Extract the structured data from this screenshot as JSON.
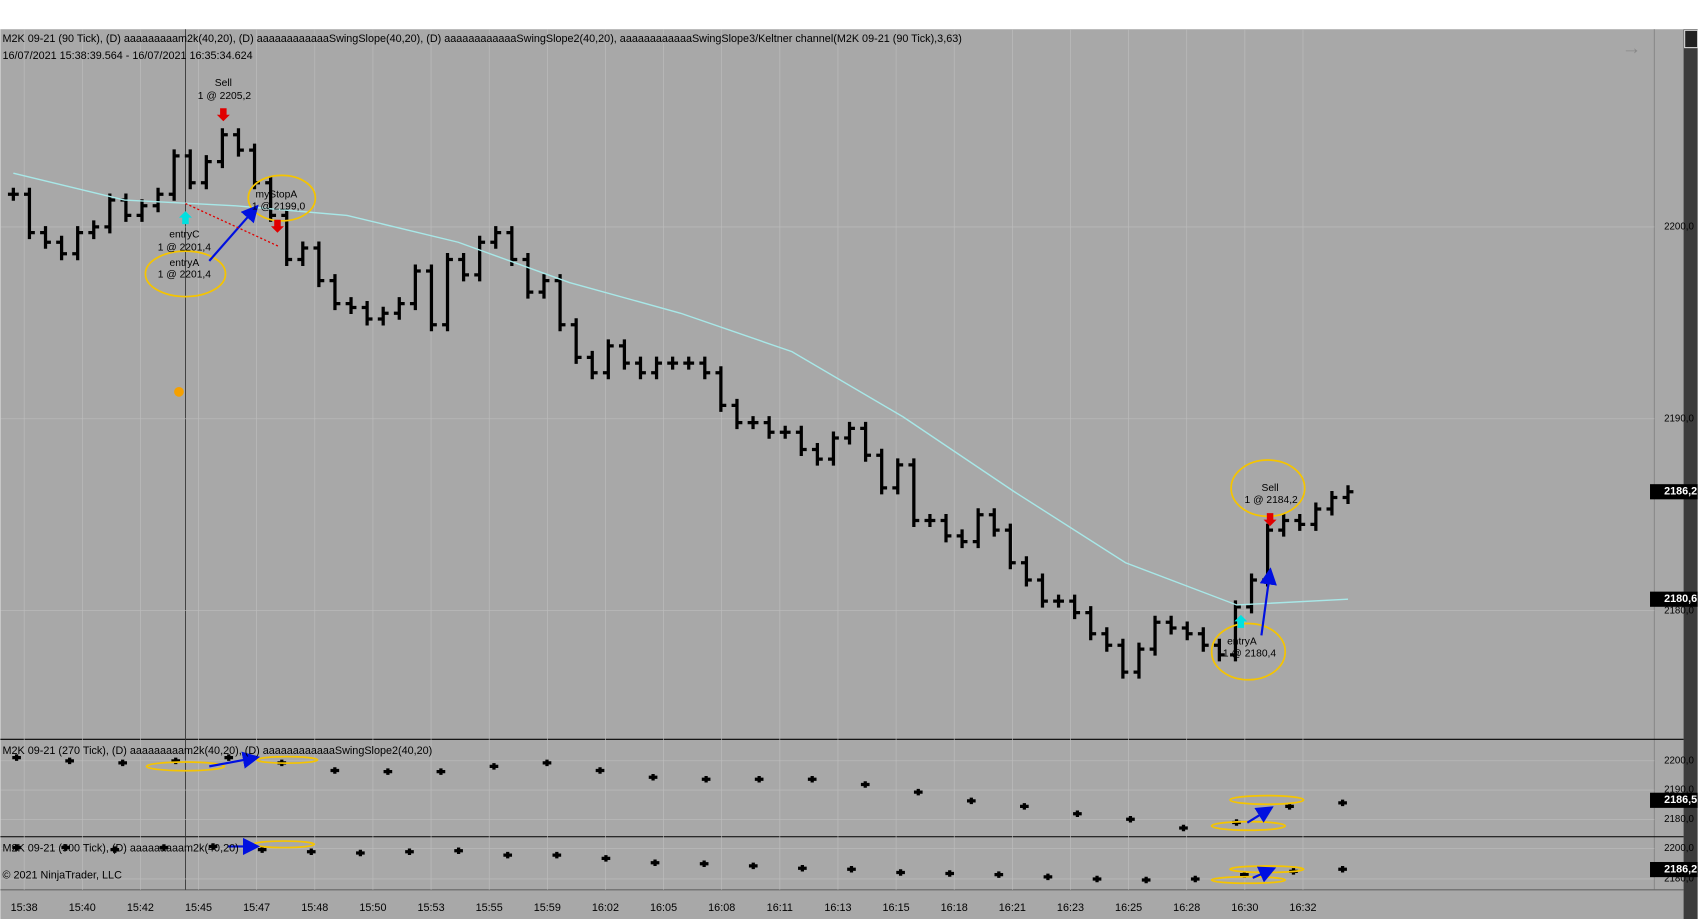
{
  "header": {
    "title": "M2K 09-21 (90 Tick), (D) aaaaaaaaam2k(40,20), (D) aaaaaaaaaaaaSwingSlope(40,20), (D) aaaaaaaaaaaaSwingSlope2(40,20), aaaaaaaaaaaaSwingSlope3/Keltner channel(M2K 09-21 (90 Tick),3,63)",
    "range": "16/07/2021 15:38:39.564 - 16/07/2021 16:35:34.624"
  },
  "main_panel": {
    "ylim": [
      2173.3,
      2210.3
    ],
    "yticks": [
      {
        "value": 2200,
        "label": "2200,0"
      },
      {
        "value": 2190,
        "label": "2190,0"
      },
      {
        "value": 2180,
        "label": "2180,0"
      }
    ],
    "price_markers": [
      {
        "value": 2186.2,
        "label": "2186,2"
      },
      {
        "value": 2180.6,
        "label": "2180,6"
      }
    ],
    "price": [
      2201.7,
      2199.7,
      2199.2,
      2198.6,
      2199.7,
      2200.0,
      2201.4,
      2200.6,
      2201.1,
      2201.7,
      2203.7,
      2202.3,
      2203.4,
      2204.8,
      2204.0,
      2202.3,
      2200.6,
      2198.3,
      2198.9,
      2197.2,
      2196.0,
      2195.8,
      2195.2,
      2195.5,
      2196.0,
      2197.7,
      2194.9,
      2198.3,
      2197.5,
      2199.2,
      2199.7,
      2198.3,
      2196.6,
      2197.2,
      2194.9,
      2193.2,
      2192.4,
      2193.8,
      2192.9,
      2192.4,
      2192.9,
      2192.9,
      2192.9,
      2192.4,
      2190.7,
      2189.8,
      2189.8,
      2189.3,
      2189.3,
      2188.4,
      2187.9,
      2189.0,
      2189.5,
      2188.1,
      2186.4,
      2187.6,
      2184.7,
      2184.7,
      2183.9,
      2183.6,
      2185.0,
      2184.2,
      2182.5,
      2181.6,
      2180.5,
      2180.5,
      2179.9,
      2178.8,
      2178.2,
      2176.8,
      2178.0,
      2179.4,
      2179.1,
      2178.8,
      2178.2,
      2177.7,
      2180.2,
      2181.6,
      2184.2,
      2184.7,
      2184.5,
      2185.3,
      2185.9,
      2186.2
    ],
    "keltner": [
      2202.8,
      2201.4,
      2201.1,
      2200.6,
      2199.2,
      2197.1,
      2195.5,
      2193.5,
      2190.1,
      2186.2,
      2182.5,
      2180.3,
      2180.6
    ],
    "annotations": [
      "Sell",
      "1 @ 2205,2",
      "entryC",
      "1 @ 2201,4",
      "entryA",
      "1 @ 2201,4",
      "myStopA",
      "1 @ 2199,0",
      "Sell",
      "1 @ 2184,2",
      "entryA",
      "1 @ 2180,4"
    ]
  },
  "panel_2": {
    "title": "M2K 09-21 (270 Tick), (D) aaaaaaaaam2k(40,20), (D) aaaaaaaaaaaaSwingSlope2(40,20)",
    "ylim": [
      2174.4,
      2207.0
    ],
    "yticks": [
      {
        "value": 2200,
        "label": "2200,0"
      },
      {
        "value": 2190,
        "label": "2190,0"
      },
      {
        "value": 2180,
        "label": "2180,0"
      }
    ],
    "price_marker": {
      "value": 2186.5,
      "label": "2186,5"
    },
    "values": [
      2201.1,
      2200.0,
      2199.3,
      2200.0,
      2201.1,
      2199.3,
      2196.7,
      2196.3,
      2196.3,
      2198.1,
      2199.3,
      2196.7,
      2194.4,
      2193.7,
      2193.7,
      2193.7,
      2191.9,
      2189.3,
      2186.3,
      2184.4,
      2181.9,
      2180.0,
      2177.0,
      2178.9,
      2184.4,
      2185.6
    ]
  },
  "panel_3": {
    "title": "M2K 09-21 (900 Tick), (D) aaaaaaaaam2k(40,20)",
    "ylim": [
      2172.9,
      2207.1
    ],
    "yticks": [
      {
        "value": 2200,
        "label": "2200,0"
      },
      {
        "value": 2180,
        "label": "2180,0"
      }
    ],
    "price_marker": {
      "value": 2186.2,
      "label": "2186,2"
    },
    "values": [
      2200.7,
      2200.7,
      2199.3,
      2200.7,
      2201.4,
      2199.3,
      2197.9,
      2197.1,
      2197.9,
      2198.6,
      2195.7,
      2195.7,
      2193.6,
      2190.7,
      2190.0,
      2188.6,
      2187.1,
      2186.4,
      2184.3,
      2183.6,
      2182.9,
      2181.4,
      2180.0,
      2179.3,
      2180.0,
      2182.9,
      2185.0,
      2186.4
    ]
  },
  "x_axis": {
    "labels": [
      "15:38",
      "15:40",
      "15:42",
      "15:45",
      "15:47",
      "15:48",
      "15:50",
      "15:53",
      "15:55",
      "15:59",
      "16:02",
      "16:05",
      "16:08",
      "16:11",
      "16:13",
      "16:15",
      "16:18",
      "16:21",
      "16:23",
      "16:25",
      "16:28",
      "16:30",
      "16:32"
    ]
  },
  "footer": {
    "copyright": "© 2021 NinjaTrader, LLC"
  }
}
